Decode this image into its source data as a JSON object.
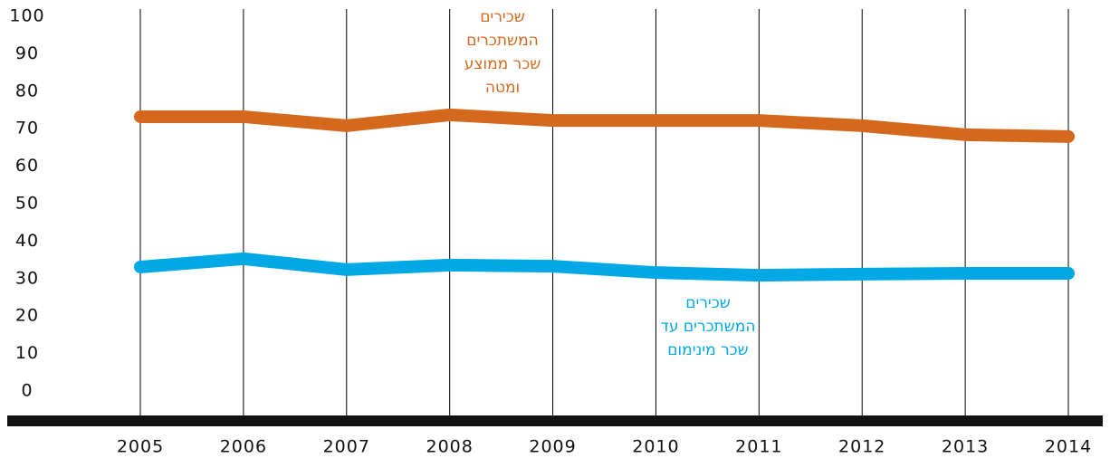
{
  "chart_data": {
    "type": "line",
    "categories": [
      "2005",
      "2006",
      "2007",
      "2008",
      "2009",
      "2010",
      "2011",
      "2012",
      "2013",
      "2014"
    ],
    "series": [
      {
        "name": "שכירים המשתכרים שכר ממוצע ומטה",
        "color": "#d4691e",
        "values": [
          73.2,
          73.2,
          70.8,
          73.7,
          72.2,
          72.2,
          72.2,
          70.8,
          68.4,
          67.9
        ]
      },
      {
        "name": "שכירים המשתכרים עד שכר מינימום",
        "color": "#00a9e6",
        "values": [
          33.1,
          35.3,
          32.4,
          33.6,
          33.3,
          31.6,
          30.9,
          31.2,
          31.4,
          31.4
        ]
      }
    ],
    "ylim": [
      0,
      100
    ],
    "yticks": [
      0,
      10,
      20,
      30,
      40,
      50,
      60,
      70,
      80,
      90,
      100
    ]
  }
}
